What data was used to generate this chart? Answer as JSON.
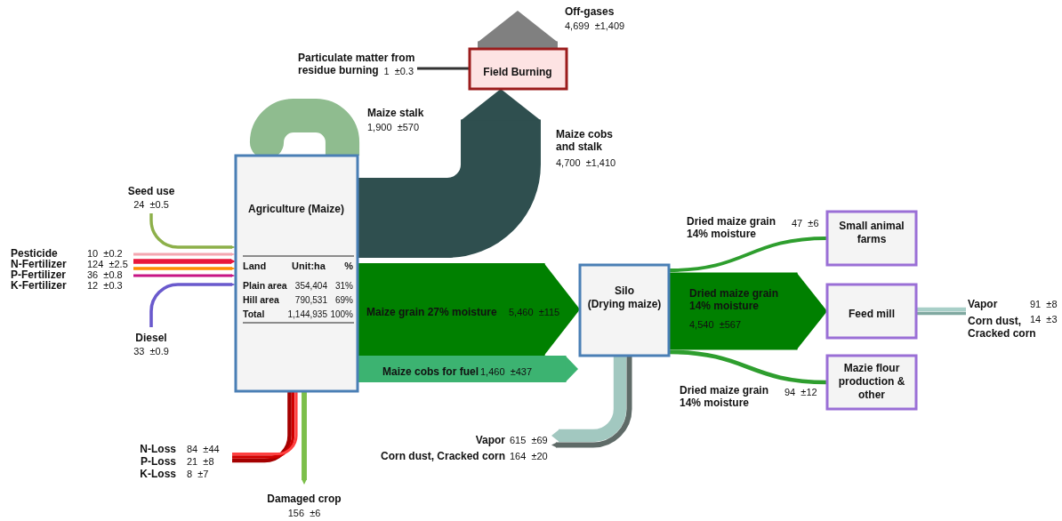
{
  "chart_data": {
    "type": "other",
    "categories": [
      "Off-gases",
      "Particulate matter from residue burning",
      "Maize stalk",
      "Maize cobs and stalk",
      "Seed use",
      "Pesticide",
      "N-Fertilizer",
      "P-Fertilizer",
      "K-Fertilizer",
      "Diesel",
      "Maize grain 27% moisture",
      "Maize cobs for fuel",
      "Dried maize grain 14% moisture",
      "Dried maize grain 14% moisture",
      "Dried maize grain 14% moisture",
      "Vapor",
      "Corn dust, Cracked corn",
      "Vapor",
      "Corn dust, Cracked corn",
      "N-Loss",
      "P-Loss",
      "K-Loss",
      "Damaged crop"
    ],
    "values": [
      4699,
      1,
      1900,
      4700,
      24,
      10,
      124,
      36,
      12,
      33,
      5460,
      1460,
      47,
      4540,
      94,
      91,
      14,
      615,
      164,
      84,
      21,
      8,
      156
    ],
    "value_labels": [
      "4,699  ±1,409",
      "1  ±0.3",
      "1,900  ±570",
      "4,700  ±1,410",
      "24  ±0.5",
      "10  ±0.2",
      "124  ±2.5",
      "36  ±0.8",
      "12  ±0.3",
      "33  ±0.9",
      "5,460  ±115",
      "1,460  ±437",
      "47  ±6",
      "4,540  ±567",
      "94  ±12",
      "91  ±8",
      "14  ±3",
      "615  ±69",
      "164  ±20",
      "84  ±44",
      "21  ±8",
      "8  ±7",
      "156  ±6"
    ],
    "colors": [
      "#808080",
      "#333333",
      "#8fbc8f",
      "#2f4f4f",
      "#8db04a",
      "#f4a6b0",
      "#e8173c",
      "#ff8c00",
      "#c71585",
      "#6a5acd",
      "#008000",
      "#3cb371",
      "#2e9e2e",
      "#008000",
      "#2e9e2e",
      "#a8cfc8",
      "#7fa8a0",
      "#a2c8c0",
      "#5f6b68",
      "#a50000",
      "#d00000",
      "#ff4040",
      "#7cbf4a"
    ],
    "annotations": [
      "Field Burning",
      "Agriculture (Maize)",
      "Silo (Drying maize)",
      "Small animal farms",
      "Feed mill",
      "Mazie flour production & other",
      "Land",
      "Unit:ha",
      "%",
      "Plain area",
      "354,404",
      "31%",
      "Hill area",
      "790,531",
      "69%",
      "Total",
      "1,144,935",
      "100%"
    ]
  }
}
